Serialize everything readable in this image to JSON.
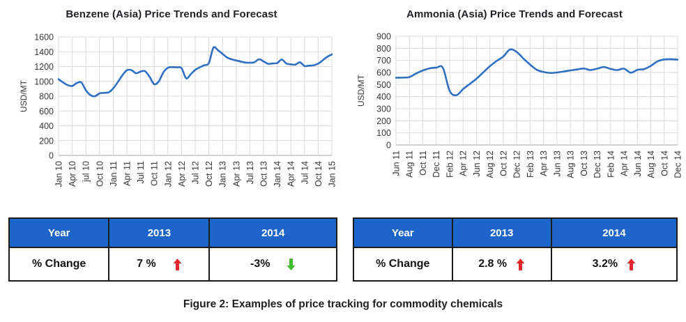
{
  "caption": "Figure 2: Examples of price tracking for commodity chemicals",
  "colors": {
    "line": "#2e6fc4",
    "table_header_blue": "#1d65c8",
    "arrow_red": "#e2262c",
    "arrow_green": "#3eba2d",
    "gridline": "#d9d9d9",
    "axis": "#a3a3a3"
  },
  "chart_data": [
    {
      "type": "line",
      "title": "Benzene (Asia) Price Trends and Forecast",
      "ylabel": "USD/MT",
      "xlabel": "",
      "ylim": [
        0,
        1600
      ],
      "ytick_step": 200,
      "grid": true,
      "legend": false,
      "x_unit": "monthly points, quarterly ticks",
      "x_tick_labels": [
        "Jan 10",
        "Apr 10",
        "jul 10",
        "Oct 10",
        "Jan 11",
        "Apr 11",
        "Jul 11",
        "Oct 11",
        "Jan 12",
        "Apr 12",
        "Jul 12",
        "Oct 12",
        "Jan 13",
        "Apr 13",
        "Jul 13",
        "Oct 13",
        "Jan 14",
        "Apr 14",
        "Jul 14",
        "Oct 14",
        "Jan 15"
      ],
      "series": [
        {
          "name": "Benzene (Asia) price",
          "values": [
            1030,
            985,
            950,
            938,
            978,
            985,
            880,
            815,
            800,
            838,
            845,
            852,
            905,
            990,
            1080,
            1150,
            1152,
            1110,
            1132,
            1137,
            1060,
            962,
            1000,
            1120,
            1183,
            1192,
            1190,
            1178,
            1042,
            1095,
            1155,
            1190,
            1218,
            1248,
            1455,
            1420,
            1372,
            1322,
            1298,
            1282,
            1268,
            1255,
            1252,
            1258,
            1298,
            1270,
            1238,
            1242,
            1248,
            1295,
            1242,
            1230,
            1226,
            1258,
            1208,
            1212,
            1218,
            1240,
            1285,
            1332,
            1365
          ]
        }
      ]
    },
    {
      "type": "line",
      "title": "Ammonia (Asia) Price Trends and Forecast",
      "ylabel": "USD/MT",
      "xlabel": "",
      "ylim": [
        0,
        900
      ],
      "ytick_step": 100,
      "grid": true,
      "legend": false,
      "x_unit": "monthly points, bimonthly ticks",
      "x_tick_labels": [
        "Jun 11",
        "Aug 11",
        "Oct 11",
        "Dec 11",
        "Feb 12",
        "Apr 12",
        "Jun 12",
        "Aug 12",
        "Oct 12",
        "Dec 12",
        "Feb 13",
        "Apr 13",
        "Jun 13",
        "Aug 13",
        "Oct 13",
        "Dec 13",
        "Feb 14",
        "Apr 14",
        "Jun 14",
        "Aug 14",
        "Oct 14",
        "Dec 14"
      ],
      "series": [
        {
          "name": "Ammonia (Asia) price",
          "values": [
            557,
            558,
            562,
            592,
            617,
            634,
            640,
            638,
            448,
            412,
            462,
            505,
            548,
            600,
            652,
            695,
            732,
            790,
            770,
            715,
            665,
            622,
            604,
            596,
            600,
            608,
            617,
            625,
            633,
            620,
            632,
            645,
            630,
            620,
            632,
            598,
            622,
            628,
            655,
            692,
            708,
            710,
            706
          ]
        }
      ]
    }
  ],
  "tables": [
    {
      "header": [
        "Year",
        "2013",
        "2014"
      ],
      "row_label": "% Change",
      "cells": [
        {
          "value": "7 %",
          "arrow_dir": "up",
          "arrow_color": "#e2262c"
        },
        {
          "value": "-3%",
          "arrow_dir": "down",
          "arrow_color": "#3eba2d"
        }
      ]
    },
    {
      "header": [
        "Year",
        "2013",
        "2014"
      ],
      "row_label": "% Change",
      "cells": [
        {
          "value": "2.8 %",
          "arrow_dir": "up",
          "arrow_color": "#e2262c"
        },
        {
          "value": "3.2%",
          "arrow_dir": "up",
          "arrow_color": "#e2262c"
        }
      ]
    }
  ]
}
